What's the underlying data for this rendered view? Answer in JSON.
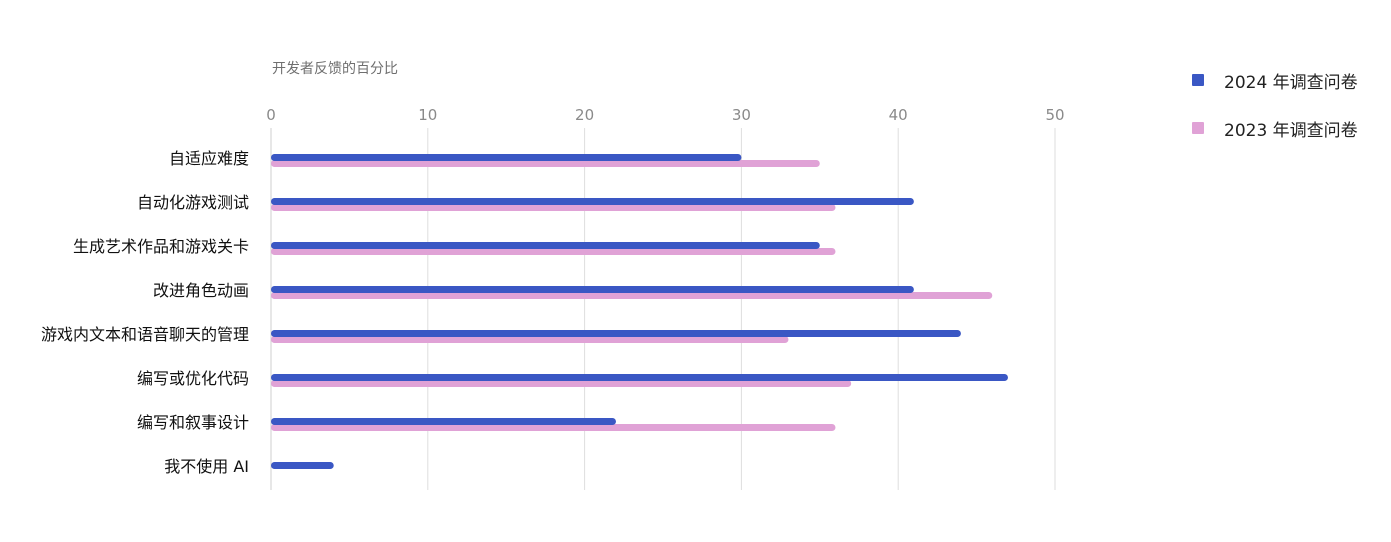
{
  "chart_data": {
    "type": "bar",
    "orientation": "horizontal",
    "xlabel": "开发者反馈的百分比",
    "ylabel": "",
    "xlim": [
      0,
      50
    ],
    "xticks": [
      0,
      10,
      20,
      30,
      40,
      50
    ],
    "grid": true,
    "legend_position": "right",
    "categories": [
      "自适应难度",
      "自动化游戏测试",
      "生成艺术作品和游戏关卡",
      "改进角色动画",
      "游戏内文本和语音聊天的管理",
      "编写或优化代码",
      "编写和叙事设计",
      "我不使用 AI"
    ],
    "series": [
      {
        "name": "2024 年调查问卷",
        "color": "#3a57c4",
        "values": [
          30,
          41,
          35,
          41,
          44,
          47,
          22,
          4
        ]
      },
      {
        "name": "2023 年调查问卷",
        "color": "#e0a2d6",
        "values": [
          35,
          36,
          36,
          46,
          33,
          37,
          36,
          null
        ]
      }
    ]
  }
}
